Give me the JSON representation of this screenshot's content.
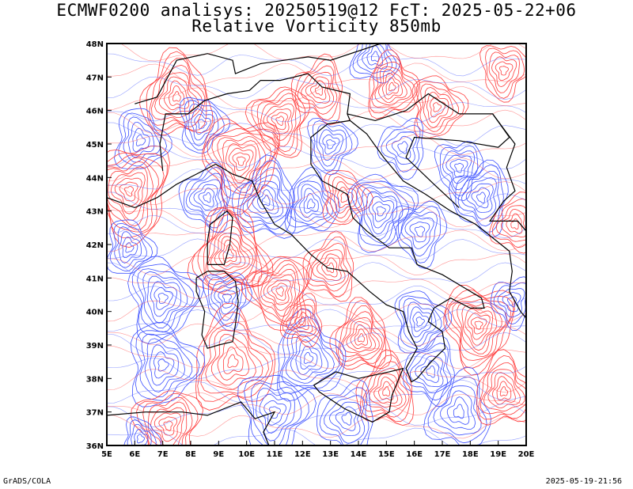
{
  "header": {
    "title_line1": "ECMWF0200 analisys: 20250519@12 FcT: 2025-05-22+06",
    "title_line2": "Relative Vorticity 850mb"
  },
  "footer": {
    "left": "GrADS/COLA",
    "right": "2025-05-19-21:56"
  },
  "map": {
    "lon_range": [
      5,
      20
    ],
    "lat_range": [
      36,
      48
    ],
    "lon_ticks": [
      "5E",
      "6E",
      "7E",
      "8E",
      "9E",
      "10E",
      "11E",
      "12E",
      "13E",
      "14E",
      "15E",
      "16E",
      "17E",
      "18E",
      "19E",
      "20E"
    ],
    "lat_ticks": [
      "36N",
      "37N",
      "38N",
      "39N",
      "40N",
      "41N",
      "42N",
      "43N",
      "44N",
      "45N",
      "46N",
      "47N",
      "48N"
    ],
    "colors": {
      "positive_vorticity": "#ff3c3c",
      "negative_vorticity": "#3c50ff",
      "coastline": "#000000",
      "frame": "#000000",
      "background": "#ffffff"
    }
  }
}
